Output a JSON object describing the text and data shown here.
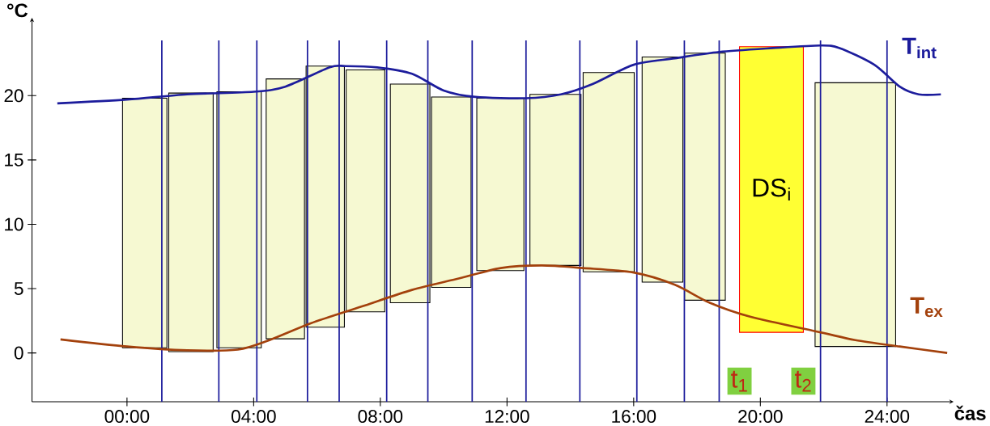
{
  "chart_data": {
    "type": "line",
    "xlabel": "čas",
    "ylabel": "°C",
    "xlim": [
      -3,
      26
    ],
    "ylim": [
      -3.8,
      25.8
    ],
    "xticks": [
      {
        "value": 0,
        "label": "00:00"
      },
      {
        "value": 4,
        "label": "04:00"
      },
      {
        "value": 8,
        "label": "08:00"
      },
      {
        "value": 12,
        "label": "12:00"
      },
      {
        "value": 16,
        "label": "16:00"
      },
      {
        "value": 20,
        "label": "20:00"
      },
      {
        "value": 24,
        "label": "24:00"
      }
    ],
    "yticks": [
      0,
      5,
      10,
      15,
      20
    ],
    "series": [
      {
        "type": "bar",
        "x": [
          0.56,
          2.02,
          3.54,
          5.0,
          6.26,
          7.53,
          8.94,
          10.24,
          11.79,
          13.53,
          15.21,
          16.91,
          18.25,
          20.35,
          23.0
        ],
        "base": [
          0.4,
          0.1,
          0.4,
          1.1,
          2.0,
          3.2,
          3.9,
          5.1,
          6.4,
          6.8,
          6.3,
          5.5,
          4.1,
          1.6,
          0.5
        ],
        "values": [
          19.4,
          20.1,
          19.9,
          20.2,
          20.3,
          18.8,
          17.0,
          14.8,
          13.4,
          13.3,
          15.5,
          17.5,
          19.2,
          22.2,
          20.5
        ],
        "colors": [
          "#f6f9d2",
          "#f6f9d2",
          "#f6f9d2",
          "#f6f9d2",
          "#f6f9d2",
          "#f6f9d2",
          "#f6f9d2",
          "#f6f9d2",
          "#f6f9d2",
          "#f6f9d2",
          "#f6f9d2",
          "#f6f9d2",
          "#f6f9d2",
          "#ffff33",
          "#f6f9d2"
        ]
      },
      {
        "name": "T$_{int}$",
        "color": "#1c1c9c",
        "x": [
          -2.2,
          0,
          1.9,
          4,
          5,
          6.4,
          6.9,
          7.9,
          9,
          10,
          11,
          12.6,
          13.7,
          14.7,
          16,
          17.3,
          18.7,
          20.4,
          21.9,
          22.5,
          23.6,
          24.4,
          25,
          25.7
        ],
        "values": [
          19.4,
          19.7,
          20.1,
          20.3,
          20.7,
          22.2,
          22.3,
          22.2,
          21.7,
          20.4,
          19.9,
          19.8,
          20.1,
          20.9,
          22.4,
          22.9,
          23.4,
          23.7,
          23.9,
          23.7,
          22.4,
          20.7,
          20.1,
          20.1
        ]
      },
      {
        "name": "T$_{ex}$",
        "color": "#a3410c",
        "x": [
          -2.1,
          0,
          1.9,
          3.5,
          4.5,
          5.8,
          7.4,
          9,
          10.5,
          11.8,
          13.1,
          14.4,
          16,
          17.3,
          18.4,
          19.7,
          21.9,
          23,
          24.4,
          25.9
        ],
        "values": [
          1.05,
          0.5,
          0.2,
          0.26,
          1.0,
          2.3,
          3.6,
          4.9,
          5.8,
          6.6,
          6.8,
          6.6,
          6.25,
          5.3,
          3.9,
          2.8,
          1.6,
          1.0,
          0.5,
          0.0
        ]
      }
    ],
    "ref_lines": [
      {
        "axis": "x",
        "value": 1.1,
        "color": "#1c1c9c"
      },
      {
        "axis": "x",
        "value": 2.9,
        "color": "#1c1c9c"
      },
      {
        "axis": "x",
        "value": 4.1,
        "color": "#1c1c9c"
      },
      {
        "axis": "x",
        "value": 5.7,
        "color": "#1c1c9c"
      },
      {
        "axis": "x",
        "value": 6.7,
        "color": "#1c1c9c"
      },
      {
        "axis": "x",
        "value": 8.2,
        "color": "#1c1c9c"
      },
      {
        "axis": "x",
        "value": 9.5,
        "color": "#1c1c9c"
      },
      {
        "axis": "x",
        "value": 10.9,
        "color": "#1c1c9c"
      },
      {
        "axis": "x",
        "value": 12.6,
        "color": "#1c1c9c"
      },
      {
        "axis": "x",
        "value": 14.3,
        "color": "#1c1c9c"
      },
      {
        "axis": "x",
        "value": 16.1,
        "color": "#1c1c9c"
      },
      {
        "axis": "x",
        "value": 17.6,
        "color": "#1c1c9c"
      },
      {
        "axis": "x",
        "value": 18.7,
        "color": "#1c1c9c"
      },
      {
        "axis": "x",
        "value": 21.9,
        "color": "#1c1c9c"
      },
      {
        "axis": "x",
        "value": 24.0,
        "color": "#1c1c9c"
      }
    ],
    "annotations": [
      "DS$_{i}$",
      "t$_{1}$",
      "t$_{2}$"
    ]
  }
}
